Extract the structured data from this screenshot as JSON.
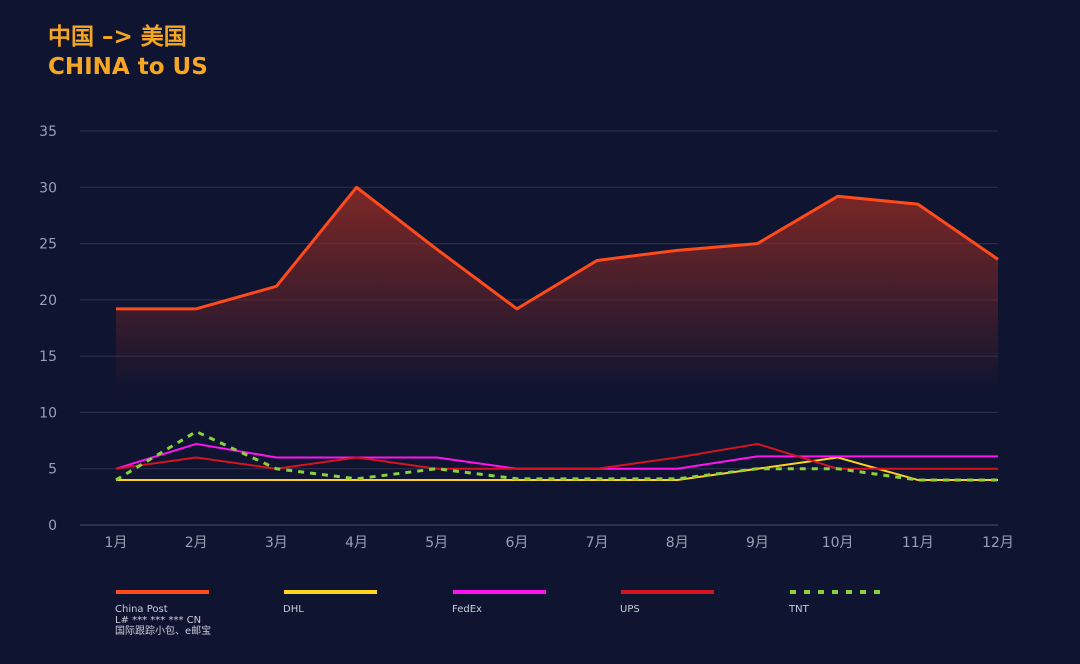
{
  "header": {
    "title_cn": "中国 –> 美国",
    "title_en": "CHINA to US"
  },
  "chart_data": {
    "type": "line",
    "title": "中国 –> 美国 CHINA to US",
    "xlabel": "",
    "ylabel": "",
    "categories": [
      "1月",
      "2月",
      "3月",
      "4月",
      "5月",
      "6月",
      "7月",
      "8月",
      "9月",
      "10月",
      "11月",
      "12月"
    ],
    "yticks": [
      0,
      5,
      10,
      15,
      20,
      25,
      30,
      35
    ],
    "ylim": [
      0,
      35
    ],
    "grid": true,
    "legend_position": "bottom",
    "series": [
      {
        "name": "China Post",
        "sub_labels": [
          "L# *** *** *** CN",
          "国际跟踪小包、e邮宝"
        ],
        "color": "#ff4a1c",
        "style": "solid",
        "area": true,
        "values": [
          19.2,
          19.2,
          21.2,
          30,
          24.5,
          19.2,
          23.5,
          24.4,
          25,
          29.2,
          28.5,
          23.6
        ]
      },
      {
        "name": "DHL",
        "sub_labels": [],
        "color": "#ffd21f",
        "style": "solid",
        "area": false,
        "values": [
          4,
          4,
          4,
          4,
          4,
          4,
          4,
          4,
          5,
          6,
          4,
          4
        ]
      },
      {
        "name": "FedEx",
        "sub_labels": [],
        "color": "#ff14f0",
        "style": "solid",
        "area": false,
        "values": [
          5,
          7.2,
          6,
          6,
          6,
          5,
          5,
          5,
          6.1,
          6.1,
          6.1,
          6.1
        ]
      },
      {
        "name": "UPS",
        "sub_labels": [],
        "color": "#d4141f",
        "style": "solid",
        "area": false,
        "values": [
          5,
          6,
          5,
          6,
          5,
          5,
          5,
          6,
          7.2,
          5,
          5,
          5
        ]
      },
      {
        "name": "TNT",
        "sub_labels": [],
        "color": "#8ad13c",
        "style": "dashed",
        "area": false,
        "values": [
          4,
          8.3,
          5,
          4.1,
          5,
          4.1,
          4.1,
          4.1,
          5,
          5,
          4,
          4
        ]
      }
    ]
  }
}
